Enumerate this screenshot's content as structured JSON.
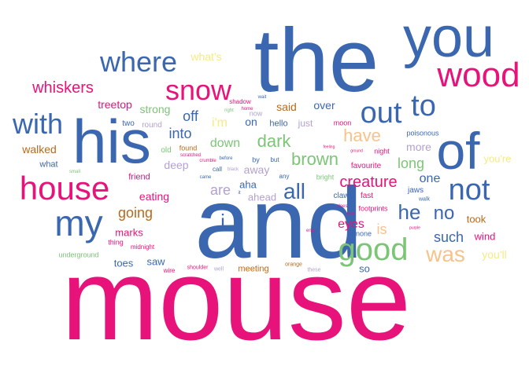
{
  "colors": {
    "blue": "#3a67b0",
    "pink": "#e8137a",
    "green": "#7cc576",
    "orange": "#b86a1c",
    "purple": "#b3a1cf",
    "peach": "#f7c38a",
    "yellow": "#f5ea86",
    "gray": "#9a9a9a"
  },
  "words": [
    {
      "text": "mouse",
      "color": "pink"
    },
    {
      "text": "and",
      "color": "blue"
    },
    {
      "text": "the",
      "color": "blue"
    },
    {
      "text": "you",
      "color": "blue"
    },
    {
      "text": "his",
      "color": "blue"
    },
    {
      "text": "of",
      "color": "blue"
    },
    {
      "text": "house",
      "color": "pink"
    },
    {
      "text": "my",
      "color": "blue"
    },
    {
      "text": "wood",
      "color": "pink"
    },
    {
      "text": "snow",
      "color": "pink"
    },
    {
      "text": "where",
      "color": "blue"
    },
    {
      "text": "with",
      "color": "blue"
    },
    {
      "text": "out",
      "color": "blue"
    },
    {
      "text": "to",
      "color": "blue"
    },
    {
      "text": "not",
      "color": "blue"
    },
    {
      "text": "good",
      "color": "green"
    },
    {
      "text": "was",
      "color": "peach"
    },
    {
      "text": "all",
      "color": "blue"
    },
    {
      "text": "he",
      "color": "blue"
    },
    {
      "text": "no",
      "color": "blue"
    },
    {
      "text": "whiskers",
      "color": "pink"
    },
    {
      "text": "brown",
      "color": "green"
    },
    {
      "text": "have",
      "color": "peach"
    },
    {
      "text": "dark",
      "color": "green"
    },
    {
      "text": "creature",
      "color": "pink"
    },
    {
      "text": "going",
      "color": "orange"
    },
    {
      "text": "into",
      "color": "blue"
    },
    {
      "text": "off",
      "color": "blue"
    },
    {
      "text": "such",
      "color": "blue"
    },
    {
      "text": "eyes",
      "color": "pink"
    },
    {
      "text": "is",
      "color": "peach"
    },
    {
      "text": "long",
      "color": "green"
    },
    {
      "text": "one",
      "color": "blue"
    },
    {
      "text": "down",
      "color": "green"
    },
    {
      "text": "are",
      "color": "purple"
    },
    {
      "text": "what's",
      "color": "yellow"
    },
    {
      "text": "i'm",
      "color": "yellow"
    },
    {
      "text": "treetop",
      "color": "pink"
    },
    {
      "text": "strong",
      "color": "green"
    },
    {
      "text": "said",
      "color": "orange"
    },
    {
      "text": "over",
      "color": "blue"
    },
    {
      "text": "on",
      "color": "blue"
    },
    {
      "text": "walked",
      "color": "orange"
    },
    {
      "text": "deep",
      "color": "purple"
    },
    {
      "text": "away",
      "color": "purple"
    },
    {
      "text": "aha",
      "color": "blue"
    },
    {
      "text": "ahead",
      "color": "purple"
    },
    {
      "text": "more",
      "color": "purple"
    },
    {
      "text": "you're",
      "color": "yellow"
    },
    {
      "text": "eating",
      "color": "pink"
    },
    {
      "text": "marks",
      "color": "pink"
    },
    {
      "text": "saw",
      "color": "blue"
    },
    {
      "text": "toes",
      "color": "blue"
    },
    {
      "text": "so",
      "color": "blue"
    },
    {
      "text": "took",
      "color": "orange"
    },
    {
      "text": "wind",
      "color": "pink"
    },
    {
      "text": "you'll",
      "color": "yellow"
    },
    {
      "text": "just",
      "color": "purple"
    },
    {
      "text": "hello",
      "color": "blue"
    },
    {
      "text": "friend",
      "color": "pink"
    },
    {
      "text": "what",
      "color": "blue"
    },
    {
      "text": "two",
      "color": "blue"
    },
    {
      "text": "round",
      "color": "purple"
    },
    {
      "text": "old",
      "color": "green"
    },
    {
      "text": "found",
      "color": "orange"
    },
    {
      "text": "fast",
      "color": "pink"
    },
    {
      "text": "claws",
      "color": "blue"
    },
    {
      "text": "jaws",
      "color": "blue"
    },
    {
      "text": "footprints",
      "color": "pink"
    },
    {
      "text": "none",
      "color": "blue"
    },
    {
      "text": "favourite",
      "color": "pink"
    },
    {
      "text": "bright",
      "color": "green"
    },
    {
      "text": "poisonous",
      "color": "blue"
    },
    {
      "text": "night",
      "color": "pink"
    },
    {
      "text": "moon",
      "color": "pink"
    },
    {
      "text": "by",
      "color": "blue"
    },
    {
      "text": "but",
      "color": "blue"
    },
    {
      "text": "any",
      "color": "blue"
    },
    {
      "text": "meeting",
      "color": "orange"
    },
    {
      "text": "midnight",
      "color": "pink"
    },
    {
      "text": "thing",
      "color": "pink"
    },
    {
      "text": "underground",
      "color": "green"
    },
    {
      "text": "shadow",
      "color": "pink"
    },
    {
      "text": "call",
      "color": "blue"
    },
    {
      "text": "shoulder",
      "color": "pink"
    },
    {
      "text": "wire",
      "color": "pink"
    },
    {
      "text": "well",
      "color": "purple"
    },
    {
      "text": "these",
      "color": "purple"
    },
    {
      "text": "orange",
      "color": "orange"
    },
    {
      "text": "crumble",
      "color": "pink"
    },
    {
      "text": "scratched",
      "color": "pink"
    },
    {
      "text": "before",
      "color": "blue"
    },
    {
      "text": "came",
      "color": "blue"
    },
    {
      "text": "black",
      "color": "purple"
    },
    {
      "text": "home",
      "color": "pink"
    },
    {
      "text": "right",
      "color": "green"
    },
    {
      "text": "wait",
      "color": "blue"
    },
    {
      "text": "does",
      "color": "pink"
    },
    {
      "text": "head",
      "color": "pink"
    },
    {
      "text": "walk",
      "color": "blue"
    },
    {
      "text": "end",
      "color": "pink"
    },
    {
      "text": "purple",
      "color": "pink"
    },
    {
      "text": "ground",
      "color": "pink"
    },
    {
      "text": "feeling",
      "color": "pink"
    },
    {
      "text": "small",
      "color": "green"
    },
    {
      "text": "now",
      "color": "purple"
    },
    {
      "text": "i",
      "color": "blue"
    },
    {
      "text": "it",
      "color": "blue"
    }
  ]
}
